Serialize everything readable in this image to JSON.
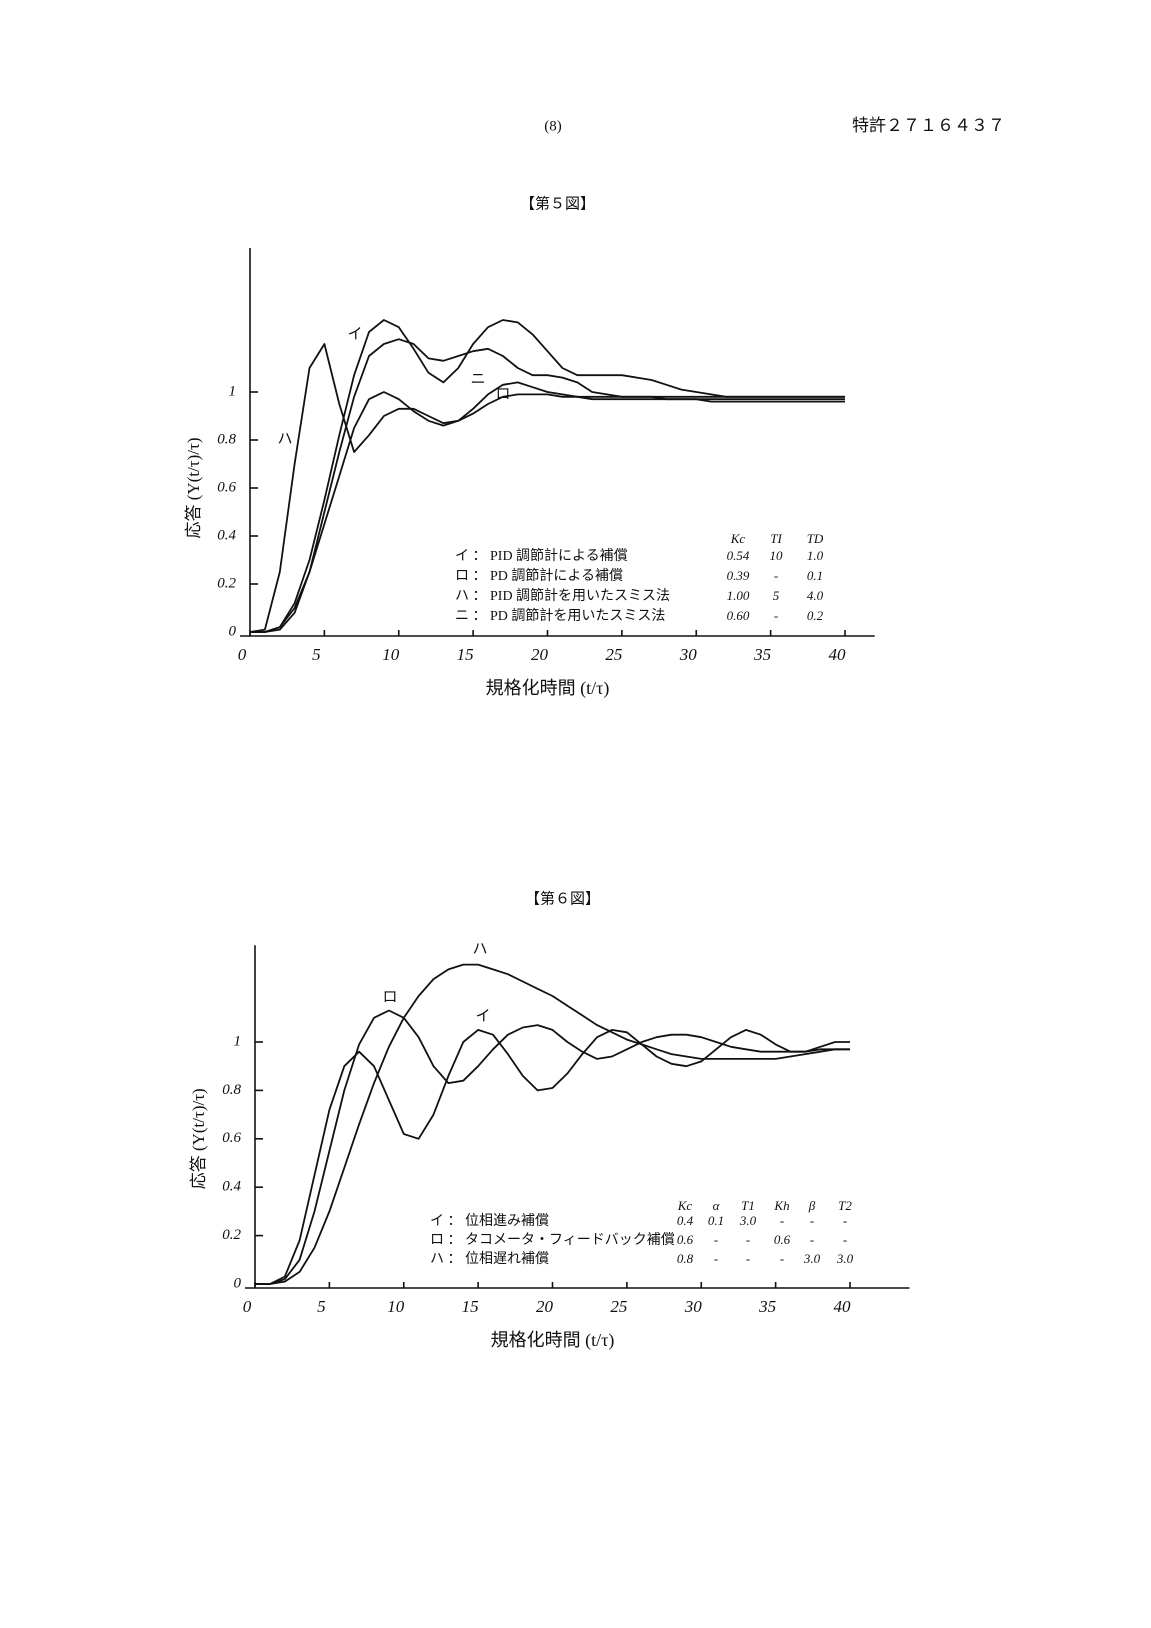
{
  "header": {
    "page": "(8)",
    "number": "特許２７１６４３７"
  },
  "chart_data": [
    {
      "type": "line",
      "title": "【第５図】",
      "x_label": "規格化時間 (t/τ)",
      "y_label": "応答 (Y(t/τ)/τ)",
      "x": [
        0,
        1,
        2,
        3,
        4,
        5,
        6,
        7,
        8,
        9,
        10,
        11,
        12,
        13,
        14,
        15,
        16,
        17,
        18,
        19,
        20,
        21,
        22,
        23,
        24,
        25,
        26,
        27,
        28,
        29,
        30,
        31,
        32,
        33,
        34,
        35,
        36,
        37,
        38,
        39,
        40
      ],
      "xlim": [
        0,
        42
      ],
      "ylim": [
        0,
        1.6
      ],
      "xticks": [
        0,
        5,
        10,
        15,
        20,
        25,
        30,
        35,
        40
      ],
      "yticks": [
        0,
        0.2,
        0.4,
        0.6,
        0.8,
        1
      ],
      "color": "#111111",
      "series": [
        {
          "name": "イ",
          "values": [
            0,
            0,
            0.02,
            0.12,
            0.3,
            0.55,
            0.82,
            1.07,
            1.25,
            1.3,
            1.27,
            1.18,
            1.08,
            1.04,
            1.1,
            1.2,
            1.27,
            1.3,
            1.29,
            1.24,
            1.17,
            1.1,
            1.07,
            1.07,
            1.07,
            1.07,
            1.06,
            1.05,
            1.03,
            1.01,
            1.0,
            0.99,
            0.98,
            0.98,
            0.98,
            0.98,
            0.98,
            0.98,
            0.98,
            0.98,
            0.98
          ]
        },
        {
          "name": "ロ",
          "values": [
            0,
            0,
            0.02,
            0.1,
            0.25,
            0.45,
            0.65,
            0.85,
            0.97,
            1.0,
            0.97,
            0.92,
            0.88,
            0.86,
            0.88,
            0.93,
            0.99,
            1.03,
            1.04,
            1.02,
            1.0,
            0.99,
            0.98,
            0.97,
            0.97,
            0.97,
            0.97,
            0.97,
            0.97,
            0.97,
            0.97,
            0.97,
            0.97,
            0.97,
            0.97,
            0.97,
            0.97,
            0.97,
            0.97,
            0.97,
            0.97
          ]
        },
        {
          "name": "ハ",
          "values": [
            0,
            0.01,
            0.25,
            0.7,
            1.1,
            1.2,
            0.95,
            0.75,
            0.82,
            0.9,
            0.93,
            0.93,
            0.9,
            0.87,
            0.88,
            0.91,
            0.95,
            0.98,
            0.99,
            0.99,
            0.99,
            0.98,
            0.98,
            0.98,
            0.98,
            0.98,
            0.98,
            0.98,
            0.98,
            0.98,
            0.98,
            0.98,
            0.98,
            0.98,
            0.98,
            0.98,
            0.98,
            0.98,
            0.98,
            0.98,
            0.98
          ]
        },
        {
          "name": "ニ",
          "values": [
            0,
            0,
            0.01,
            0.08,
            0.25,
            0.5,
            0.75,
            0.98,
            1.15,
            1.2,
            1.22,
            1.2,
            1.14,
            1.13,
            1.15,
            1.17,
            1.18,
            1.15,
            1.1,
            1.07,
            1.07,
            1.06,
            1.04,
            1.0,
            0.99,
            0.98,
            0.98,
            0.98,
            0.97,
            0.97,
            0.97,
            0.96,
            0.96,
            0.96,
            0.96,
            0.96,
            0.96,
            0.96,
            0.96,
            0.96,
            0.96
          ]
        }
      ],
      "legend": {
        "columns": [
          "Kc",
          "TI",
          "TD"
        ],
        "rows": [
          {
            "label": "イ ： PID 調節計による補償",
            "cells": [
              "0.54",
              "10",
              "1.0"
            ]
          },
          {
            "label": "ロ ： PD 調節計による補償",
            "cells": [
              "0.39",
              "-",
              "0.1"
            ]
          },
          {
            "label": "ハ ： PID 調節計を用いたスミス法",
            "cells": [
              "1.00",
              "5",
              "4.0"
            ]
          },
          {
            "label": "ニ ： PD 調節計を用いたスミス法",
            "cells": [
              "0.60",
              "-",
              "0.2"
            ]
          }
        ]
      }
    },
    {
      "type": "line",
      "title": "【第６図】",
      "x_label": "規格化時間 (t/τ)",
      "y_label": "応答 (Y(t/τ)/τ)",
      "x": [
        0,
        1,
        2,
        3,
        4,
        5,
        6,
        7,
        8,
        9,
        10,
        11,
        12,
        13,
        14,
        15,
        16,
        17,
        18,
        19,
        20,
        21,
        22,
        23,
        24,
        25,
        26,
        27,
        28,
        29,
        30,
        31,
        32,
        33,
        34,
        35,
        36,
        37,
        38,
        39,
        40
      ],
      "xlim": [
        0,
        44
      ],
      "ylim": [
        0,
        1.4
      ],
      "xticks": [
        0,
        5,
        10,
        15,
        20,
        25,
        30,
        35,
        40
      ],
      "yticks": [
        0,
        0.2,
        0.4,
        0.6,
        0.8,
        1
      ],
      "color": "#111111",
      "series": [
        {
          "name": "イ",
          "values": [
            0,
            0,
            0.03,
            0.18,
            0.45,
            0.72,
            0.9,
            0.96,
            0.9,
            0.76,
            0.62,
            0.6,
            0.7,
            0.86,
            1.0,
            1.05,
            1.03,
            0.95,
            0.86,
            0.8,
            0.81,
            0.87,
            0.95,
            1.02,
            1.05,
            1.04,
            0.99,
            0.94,
            0.91,
            0.9,
            0.92,
            0.97,
            1.02,
            1.05,
            1.03,
            0.99,
            0.96,
            0.96,
            0.98,
            1.0,
            1.0
          ]
        },
        {
          "name": "ロ",
          "values": [
            0,
            0,
            0.02,
            0.1,
            0.3,
            0.55,
            0.8,
            0.99,
            1.1,
            1.13,
            1.1,
            1.02,
            0.9,
            0.83,
            0.84,
            0.9,
            0.97,
            1.03,
            1.06,
            1.07,
            1.05,
            1.0,
            0.96,
            0.93,
            0.94,
            0.97,
            1.0,
            1.02,
            1.03,
            1.03,
            1.02,
            1.0,
            0.98,
            0.97,
            0.96,
            0.96,
            0.96,
            0.96,
            0.97,
            0.97,
            0.97
          ]
        },
        {
          "name": "ハ",
          "values": [
            0,
            0,
            0.01,
            0.05,
            0.15,
            0.3,
            0.48,
            0.66,
            0.83,
            0.98,
            1.1,
            1.19,
            1.26,
            1.3,
            1.32,
            1.32,
            1.3,
            1.28,
            1.25,
            1.22,
            1.19,
            1.15,
            1.11,
            1.07,
            1.04,
            1.01,
            0.99,
            0.97,
            0.95,
            0.94,
            0.93,
            0.93,
            0.93,
            0.93,
            0.93,
            0.93,
            0.94,
            0.95,
            0.96,
            0.97,
            0.97
          ]
        }
      ],
      "legend": {
        "columns": [
          "Kc",
          "α",
          "T1",
          "Kh",
          "β",
          "T2"
        ],
        "rows": [
          {
            "label": "イ ： 位相進み補償",
            "cells": [
              "0.4",
              "0.1",
              "3.0",
              "-",
              "-",
              "-"
            ]
          },
          {
            "label": "ロ ： タコメータ・フィードバック補償",
            "cells": [
              "0.6",
              "-",
              "-",
              "0.6",
              "-",
              "-"
            ]
          },
          {
            "label": "ハ ： 位相遅れ補償",
            "cells": [
              "0.8",
              "-",
              "-",
              "-",
              "3.0",
              "3.0"
            ]
          }
        ]
      }
    }
  ]
}
